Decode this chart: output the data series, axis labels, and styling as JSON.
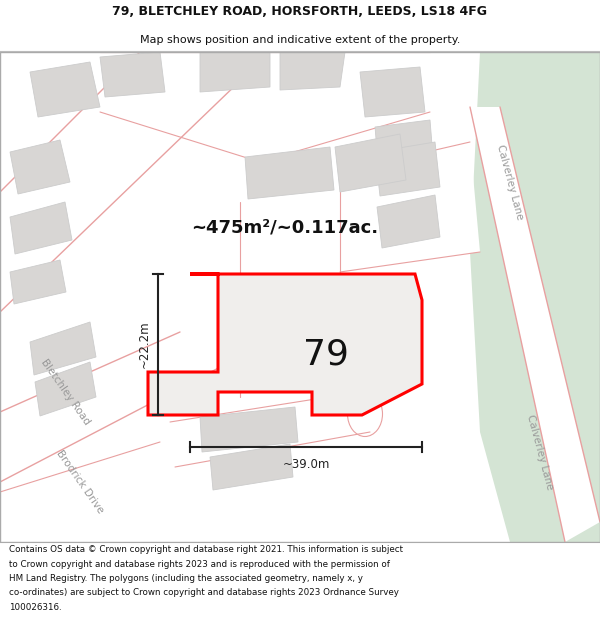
{
  "title_line1": "79, BLETCHLEY ROAD, HORSFORTH, LEEDS, LS18 4FG",
  "title_line2": "Map shows position and indicative extent of the property.",
  "area_label": "~475m²/~0.117ac.",
  "property_number": "79",
  "dim_width": "~39.0m",
  "dim_height": "~22.2m",
  "road_label_bletchley": "Bletchley Road",
  "road_label_brodrick": "Brodrick Drive",
  "road_label_calverley1": "Calverley Lane",
  "road_label_calverley2": "Calverley Lane",
  "footer_lines": [
    "Contains OS data © Crown copyright and database right 2021. This information is subject",
    "to Crown copyright and database rights 2023 and is reproduced with the permission of",
    "HM Land Registry. The polygons (including the associated geometry, namely x, y",
    "co-ordinates) are subject to Crown copyright and database rights 2023 Ordnance Survey",
    "100026316."
  ],
  "map_bg": "#f5f4f2",
  "road_fill": "#ffffff",
  "road_edge": "#e8a0a0",
  "building_fill": "#d8d6d4",
  "building_edge": "#cccccc",
  "property_fill": "#f0eeec",
  "property_outline": "#ff0000",
  "green_color": "#d4e4d4",
  "dim_color": "#222222",
  "label_color": "#999999",
  "title_color": "#111111",
  "footer_color": "#111111"
}
